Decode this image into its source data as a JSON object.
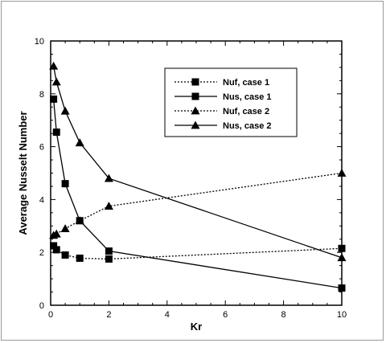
{
  "chart_data": {
    "type": "line",
    "xlabel": "Kr",
    "ylabel": "Average Nusselt Number",
    "xlim": [
      0,
      10
    ],
    "ylim": [
      0,
      10
    ],
    "xticks": [
      0,
      2,
      4,
      6,
      8,
      10
    ],
    "yticks": [
      0,
      2,
      4,
      6,
      8,
      10
    ],
    "legend_position": "top-right",
    "grid": false,
    "series": [
      {
        "name": "Nuf, case 1",
        "marker": "square",
        "line": "dotted",
        "x": [
          0.1,
          0.2,
          0.5,
          1,
          2,
          10
        ],
        "y": [
          2.25,
          2.1,
          1.9,
          1.78,
          1.75,
          2.15
        ]
      },
      {
        "name": "Nus, case 1",
        "marker": "square",
        "line": "solid",
        "x": [
          0.1,
          0.2,
          0.5,
          1,
          2,
          10
        ],
        "y": [
          7.8,
          6.55,
          4.6,
          3.2,
          2.05,
          0.65
        ]
      },
      {
        "name": "Nuf, case 2",
        "marker": "triangle",
        "line": "dotted",
        "x": [
          0.1,
          0.2,
          0.5,
          1,
          2,
          10
        ],
        "y": [
          2.65,
          2.7,
          2.9,
          3.2,
          3.75,
          5.0
        ]
      },
      {
        "name": "Nus, case 2",
        "marker": "triangle",
        "line": "solid",
        "x": [
          0.1,
          0.2,
          0.5,
          1,
          2,
          10
        ],
        "y": [
          9.05,
          8.45,
          7.35,
          6.15,
          4.8,
          1.8
        ]
      }
    ]
  }
}
